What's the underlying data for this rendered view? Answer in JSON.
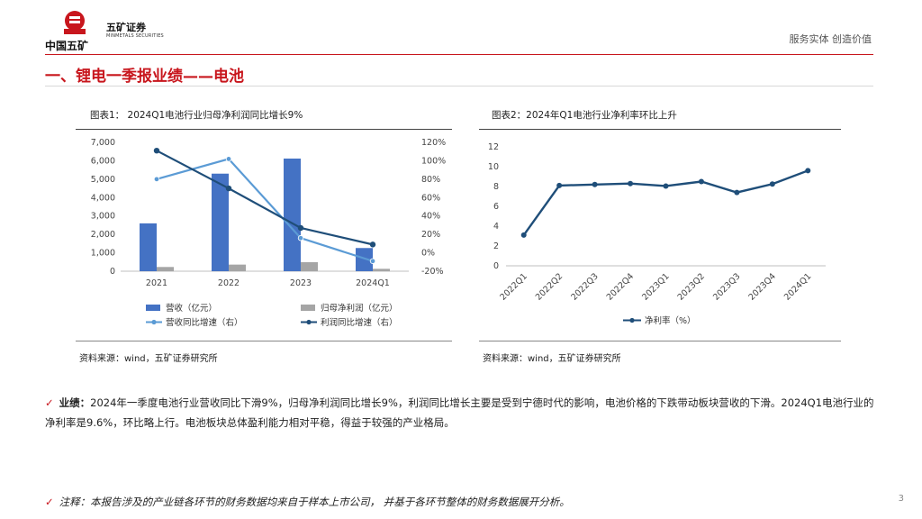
{
  "header": {
    "logo_cmc": "中国五矿",
    "logo_wk": "五矿证券",
    "logo_wk_en": "MINMETALS SECURITIES",
    "slogan": "服务实体  创造价值",
    "colors": {
      "brand_red": "#c8161d",
      "bar_blue": "#4472c4",
      "bar_gray": "#a5a5a5",
      "line_light": "#5b9bd5",
      "line_dark": "#1f4e79"
    }
  },
  "page_title": "一、锂电一季报业绩——电池",
  "figure1": {
    "title": "图表1：  2024Q1电池行业归母净利润同比增长9%",
    "source": "资料来源：wind，五矿证券研究所"
  },
  "figure2": {
    "title": "图表2：2024年Q1电池行业净利率环比上升",
    "source": "资料来源：wind，五矿证券研究所"
  },
  "bullets": {
    "perf_label": "业绩：",
    "perf_text": "2024年一季度电池行业营收同比下滑9%，归母净利润同比增长9%，利润同比增长主要是受到宁德时代的影响，电池价格的下跌带动板块营收的下滑。2024Q1电池行业的净利率是9.6%，环比略上行。电池板块总体盈利能力相对平稳，得益于较强的产业格局。",
    "note_text": "注释：本报告涉及的产业链各环节的财务数据均来自于样本上市公司， 并基于各环节整体的财务数据展开分析。"
  },
  "page_number": "3",
  "chart_data": [
    {
      "type": "bar",
      "categories": [
        "2021",
        "2022",
        "2023",
        "2024Q1"
      ],
      "ylim": [
        0,
        7000
      ],
      "y_ticks": [
        "0",
        "1,000",
        "2,000",
        "3,000",
        "4,000",
        "5,000",
        "6,000",
        "7,000"
      ],
      "y2lim": [
        -20,
        120
      ],
      "y2_ticks": [
        "-20%",
        "0%",
        "20%",
        "40%",
        "60%",
        "80%",
        "100%",
        "120%"
      ],
      "series": [
        {
          "name": "营收（亿元）",
          "type": "bar",
          "axis": "left",
          "values": [
            2600,
            5300,
            6120,
            1260
          ]
        },
        {
          "name": "归母净利润（亿元）",
          "type": "bar",
          "axis": "left",
          "values": [
            230,
            360,
            490,
            130
          ]
        },
        {
          "name": "营收同比增速（右）",
          "type": "line",
          "axis": "right",
          "values": [
            80,
            102,
            16,
            -9
          ]
        },
        {
          "name": "利润同比增速（右）",
          "type": "line",
          "axis": "right",
          "values": [
            111,
            70,
            27,
            9
          ]
        }
      ],
      "legend": "bottom",
      "grid": false
    },
    {
      "type": "line",
      "categories": [
        "2022Q1",
        "2022Q2",
        "2022Q3",
        "2022Q4",
        "2023Q1",
        "2023Q2",
        "2023Q3",
        "2023Q4",
        "2024Q1"
      ],
      "ylim": [
        0,
        12
      ],
      "y_ticks": [
        "0",
        "2",
        "4",
        "6",
        "8",
        "10",
        "12"
      ],
      "series": [
        {
          "name": "净利率（%）",
          "values": [
            3.1,
            8.1,
            8.2,
            8.3,
            8.05,
            8.5,
            7.4,
            8.25,
            9.6
          ]
        }
      ],
      "legend": "bottom",
      "grid": false
    }
  ]
}
